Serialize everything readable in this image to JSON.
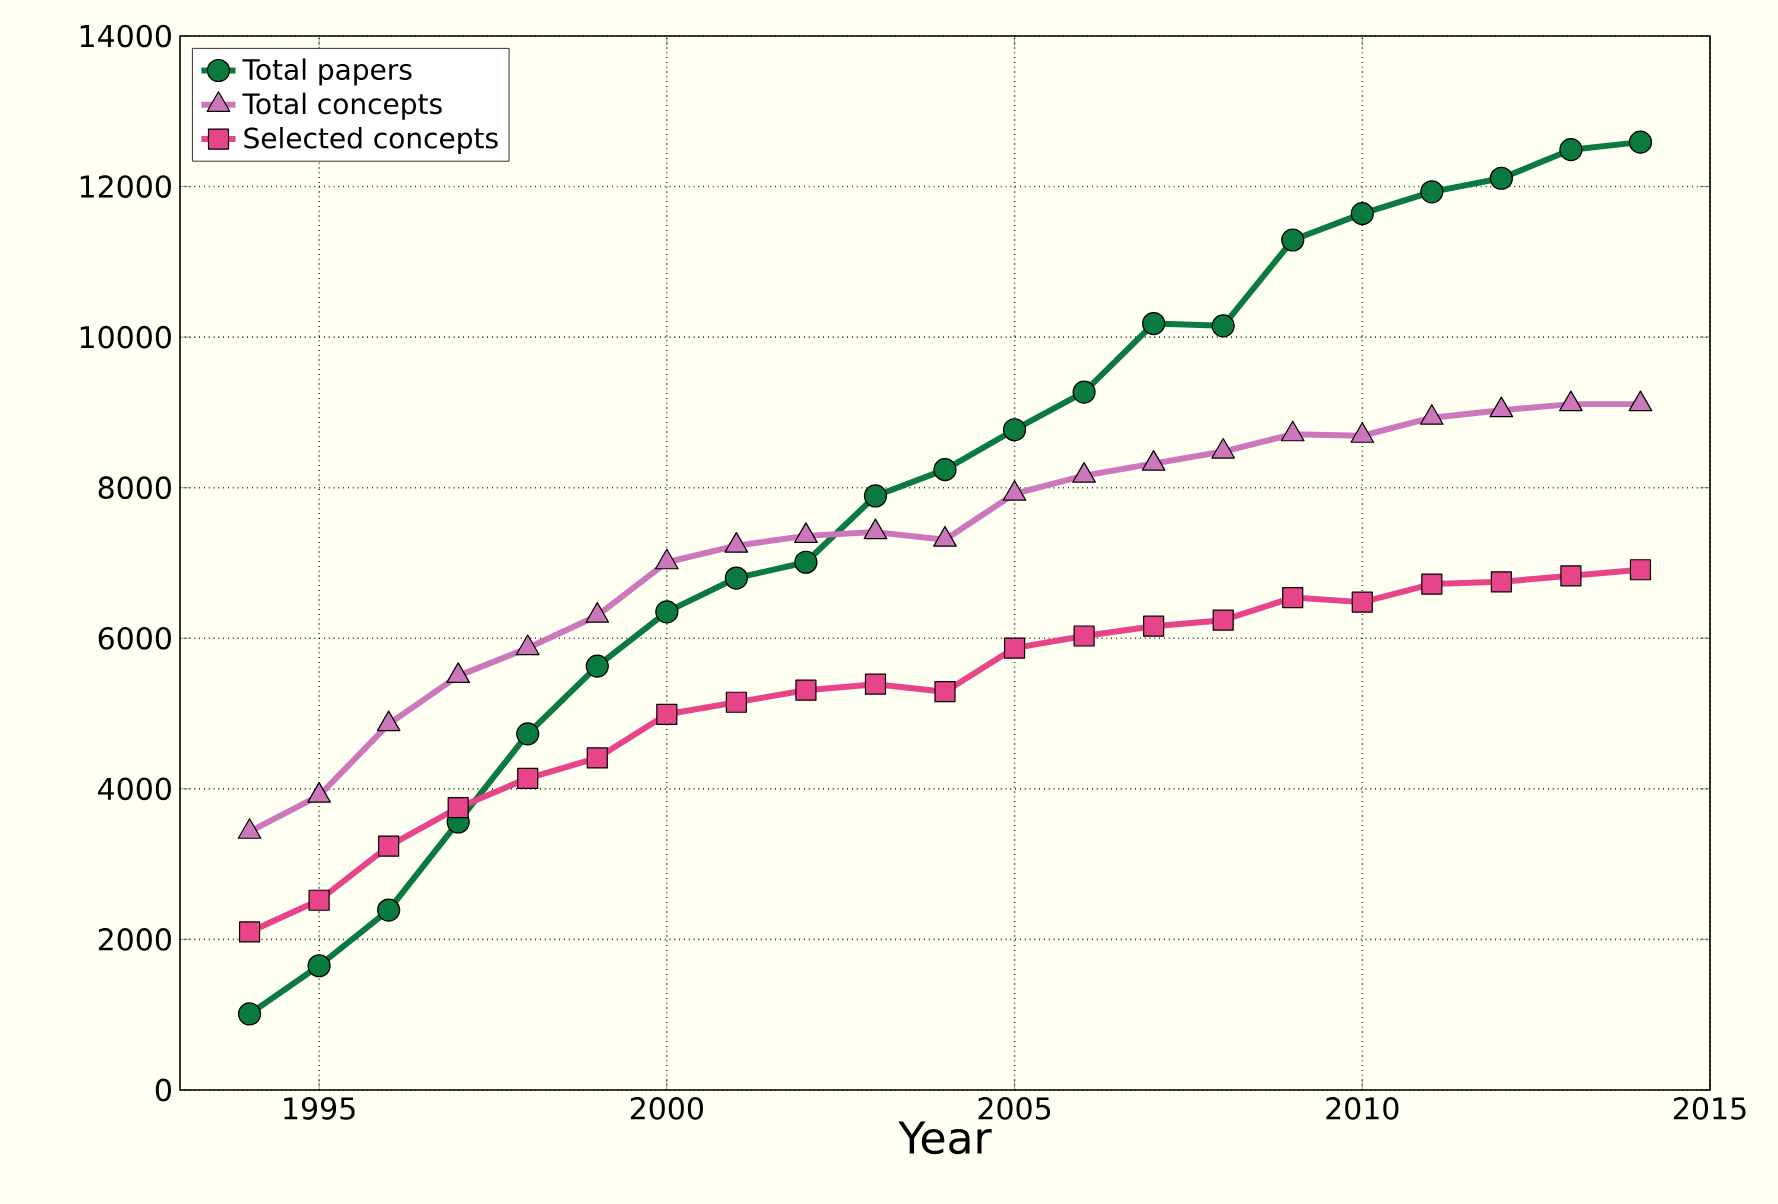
{
  "chart_data": {
    "type": "line",
    "xlabel": "Year",
    "xlim": [
      1993,
      2015
    ],
    "xticks": [
      1995,
      2000,
      2005,
      2010,
      2015
    ],
    "ylim": [
      0,
      14000
    ],
    "yticks": [
      0,
      2000,
      4000,
      6000,
      8000,
      10000,
      12000,
      14000
    ],
    "grid": true,
    "legend": "top left",
    "x": [
      1994,
      1995,
      1996,
      1997,
      1998,
      1999,
      2000,
      2001,
      2002,
      2003,
      2004,
      2005,
      2006,
      2007,
      2008,
      2009,
      2010,
      2011,
      2012,
      2013,
      2014
    ],
    "series": [
      {
        "name": "Total papers",
        "color": "#0b7a3e",
        "marker": "circle",
        "values": [
          1010,
          1650,
          2390,
          3560,
          4730,
          5630,
          6350,
          6800,
          7010,
          7890,
          8240,
          8770,
          9270,
          10180,
          10150,
          11290,
          11640,
          11930,
          12110,
          12490,
          12590
        ]
      },
      {
        "name": "Total concepts",
        "color": "#cc77bb",
        "marker": "triangle",
        "values": [
          3430,
          3910,
          4860,
          5500,
          5870,
          6300,
          7010,
          7230,
          7360,
          7410,
          7310,
          7920,
          8160,
          8320,
          8480,
          8710,
          8690,
          8930,
          9030,
          9110,
          9110
        ]
      },
      {
        "name": "Selected concepts",
        "color": "#e8448a",
        "marker": "square",
        "values": [
          2100,
          2520,
          3240,
          3750,
          4140,
          4410,
          4990,
          5150,
          5310,
          5390,
          5290,
          5870,
          6030,
          6160,
          6240,
          6540,
          6480,
          6720,
          6750,
          6830,
          6910
        ]
      }
    ]
  }
}
